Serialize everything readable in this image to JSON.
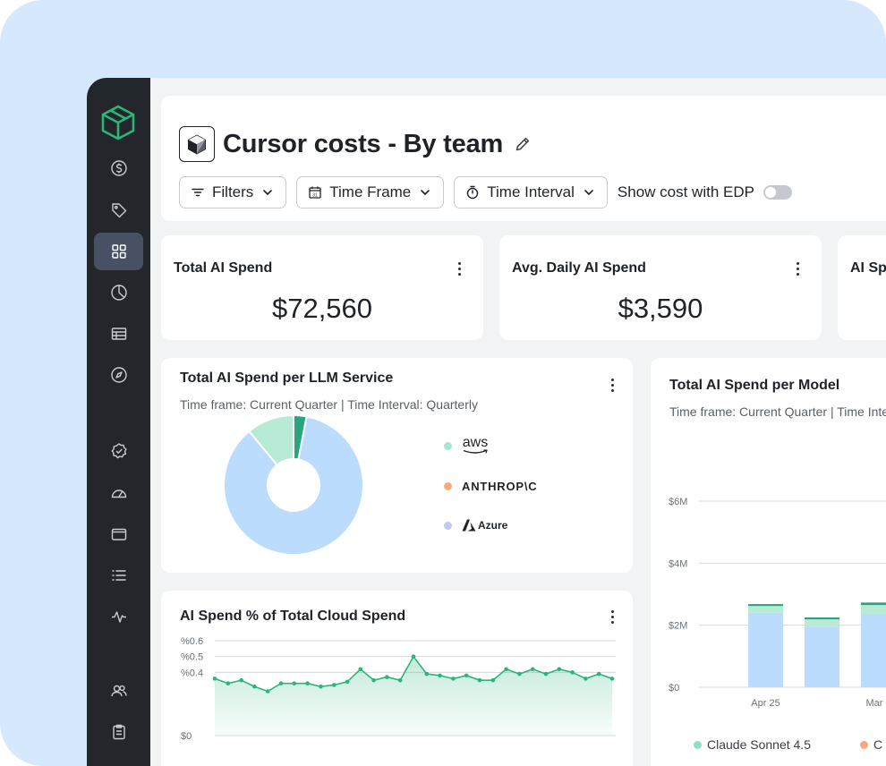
{
  "app": {
    "title": "Cursor costs - By team",
    "colors": {
      "brand": "#2bb57a",
      "sidebar": "#23262a",
      "background_panel": "#d6e8fd"
    }
  },
  "sidebar": {
    "items": [
      {
        "icon": "dollar-icon"
      },
      {
        "icon": "tag-icon"
      },
      {
        "icon": "dashboard-grid-icon",
        "active": true
      },
      {
        "icon": "pie-chart-icon"
      },
      {
        "icon": "table-icon"
      },
      {
        "icon": "compass-icon"
      },
      {
        "icon": "badge-check-icon"
      },
      {
        "icon": "gauge-icon"
      },
      {
        "icon": "wallet-icon"
      },
      {
        "icon": "list-icon"
      },
      {
        "icon": "activity-icon"
      },
      {
        "icon": "users-icon"
      },
      {
        "icon": "clipboard-icon"
      }
    ]
  },
  "toolbar": {
    "filters_label": "Filters",
    "time_frame_label": "Time Frame",
    "time_interval_label": "Time Interval",
    "edp_toggle_label": "Show cost with EDP",
    "edp_enabled": false
  },
  "kpis": [
    {
      "title": "Total AI Spend",
      "value": "$72,560"
    },
    {
      "title": "Avg. Daily AI Spend",
      "value": "$3,590"
    },
    {
      "title": "AI Sp",
      "value": ""
    }
  ],
  "llm_service": {
    "title": "Total AI Spend per LLM Service",
    "subtitle": "Time frame: Current Quarter | Time Interval: Quarterly",
    "chart_data": {
      "type": "pie",
      "donut": true,
      "slices": [
        {
          "name": "aws",
          "value": 11,
          "color": "#b8ebd6"
        },
        {
          "name": "ANTHROP\\C",
          "value": 3,
          "color": "#27a67c"
        },
        {
          "name": "Azure",
          "value": 86,
          "color": "#bcdcfd"
        }
      ]
    },
    "legend": [
      {
        "label": "aws",
        "color": "#a6e6cd"
      },
      {
        "label": "ANTHROP\\C",
        "color": "#f4a982"
      },
      {
        "label": "Azure",
        "color": "#c4c6f6"
      }
    ]
  },
  "cloud_pct": {
    "title": "AI Spend % of Total Cloud Spend",
    "chart_data": {
      "type": "area",
      "y_ticks": [
        "%0.6",
        "%0.5",
        "%0.4",
        "$0"
      ],
      "ylim": [
        0,
        0.6
      ],
      "values": [
        0.36,
        0.33,
        0.35,
        0.31,
        0.28,
        0.33,
        0.33,
        0.33,
        0.31,
        0.32,
        0.34,
        0.42,
        0.35,
        0.37,
        0.35,
        0.5,
        0.39,
        0.38,
        0.36,
        0.38,
        0.35,
        0.35,
        0.42,
        0.39,
        0.42,
        0.39,
        0.42,
        0.4,
        0.36,
        0.39,
        0.36
      ],
      "color": "#2bb57a"
    }
  },
  "per_model": {
    "title": "Total AI Spend per Model",
    "subtitle": "Time frame: Current Quarter | Time Interval: Quarterly",
    "chart_data": {
      "type": "bar",
      "stacked": true,
      "categories": [
        "Apr 25",
        "",
        "Mar 2"
      ],
      "y_ticks": [
        "$6M",
        "$4M",
        "$2M",
        "$0"
      ],
      "ylim": [
        0,
        6
      ],
      "series": [
        {
          "name": "Claude Sonnet 4.5",
          "values": [
            2.4,
            1.95,
            2.35
          ],
          "color": "#bcdcfd"
        },
        {
          "name": "",
          "values": [
            0.22,
            0.24,
            0.3
          ],
          "color": "#b8ebd6"
        },
        {
          "name": "",
          "values": [
            0.06,
            0.06,
            0.08
          ],
          "color": "#27a67c"
        }
      ]
    },
    "legend": [
      {
        "label": "Claude Sonnet 4.5",
        "color": "#8ee0bf"
      },
      {
        "label": "C",
        "color": "#f4a982"
      }
    ]
  }
}
